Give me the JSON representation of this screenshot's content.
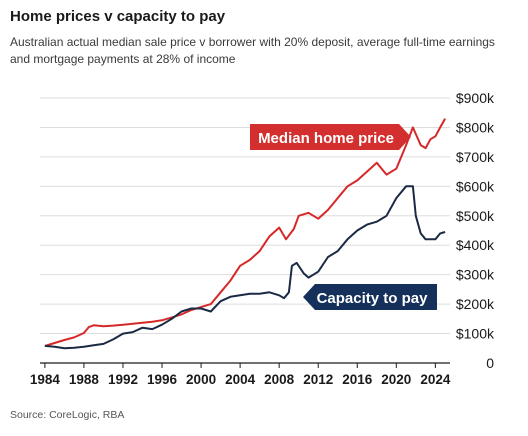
{
  "header": {
    "title": "Home prices v capacity to pay",
    "subtitle": "Australian actual median sale price v borrower with 20% deposit, average full-time earnings and mortgage payments at 28% of income"
  },
  "footer": {
    "source": "Source: CoreLogic, RBA"
  },
  "chart_data": {
    "type": "line",
    "title": "Home prices v capacity to pay",
    "xlabel": "",
    "ylabel": "",
    "xlim": [
      1983.5,
      2025.5
    ],
    "ylim": [
      0,
      900000
    ],
    "x_ticks": [
      1984,
      1988,
      1992,
      1996,
      2000,
      2004,
      2008,
      2012,
      2016,
      2020,
      2024
    ],
    "y_ticks": [
      {
        "value": 0,
        "label": "0"
      },
      {
        "value": 100000,
        "label": "$100k"
      },
      {
        "value": 200000,
        "label": "$200k"
      },
      {
        "value": 300000,
        "label": "$300k"
      },
      {
        "value": 400000,
        "label": "$400k"
      },
      {
        "value": 500000,
        "label": "$500k"
      },
      {
        "value": 600000,
        "label": "$600k"
      },
      {
        "value": 700000,
        "label": "$700k"
      },
      {
        "value": 800000,
        "label": "$800k"
      },
      {
        "value": 900000,
        "label": "$900k"
      }
    ],
    "grid": true,
    "series": [
      {
        "name": "Median home price",
        "color": "#d62828",
        "label_color": "#d32f2f",
        "points": [
          [
            1984.0,
            58000
          ],
          [
            1985.0,
            68000
          ],
          [
            1986.0,
            78000
          ],
          [
            1987.0,
            87000
          ],
          [
            1988.0,
            102000
          ],
          [
            1988.5,
            122000
          ],
          [
            1989.0,
            128000
          ],
          [
            1990.0,
            125000
          ],
          [
            1991.0,
            127000
          ],
          [
            1992.0,
            130000
          ],
          [
            1993.0,
            133000
          ],
          [
            1994.0,
            137000
          ],
          [
            1995.0,
            140000
          ],
          [
            1996.0,
            145000
          ],
          [
            1997.0,
            155000
          ],
          [
            1998.0,
            165000
          ],
          [
            1999.0,
            180000
          ],
          [
            2000.0,
            190000
          ],
          [
            2001.0,
            200000
          ],
          [
            2002.0,
            240000
          ],
          [
            2003.0,
            280000
          ],
          [
            2004.0,
            330000
          ],
          [
            2005.0,
            350000
          ],
          [
            2006.0,
            380000
          ],
          [
            2007.0,
            430000
          ],
          [
            2008.0,
            460000
          ],
          [
            2008.7,
            420000
          ],
          [
            2009.5,
            455000
          ],
          [
            2010.0,
            500000
          ],
          [
            2011.0,
            510000
          ],
          [
            2012.0,
            490000
          ],
          [
            2013.0,
            520000
          ],
          [
            2014.0,
            560000
          ],
          [
            2015.0,
            600000
          ],
          [
            2016.0,
            620000
          ],
          [
            2017.0,
            650000
          ],
          [
            2018.0,
            680000
          ],
          [
            2019.0,
            640000
          ],
          [
            2020.0,
            660000
          ],
          [
            2021.0,
            740000
          ],
          [
            2021.7,
            800000
          ],
          [
            2022.5,
            740000
          ],
          [
            2023.0,
            730000
          ],
          [
            2023.5,
            760000
          ],
          [
            2024.0,
            770000
          ],
          [
            2024.5,
            800000
          ],
          [
            2025.0,
            830000
          ]
        ]
      },
      {
        "name": "Capacity to pay",
        "color": "#1b2a44",
        "label_color": "#15305a",
        "points": [
          [
            1984.0,
            58000
          ],
          [
            1985.0,
            55000
          ],
          [
            1986.0,
            50000
          ],
          [
            1987.0,
            52000
          ],
          [
            1988.0,
            55000
          ],
          [
            1989.0,
            60000
          ],
          [
            1990.0,
            65000
          ],
          [
            1991.0,
            80000
          ],
          [
            1992.0,
            100000
          ],
          [
            1993.0,
            105000
          ],
          [
            1994.0,
            120000
          ],
          [
            1995.0,
            115000
          ],
          [
            1996.0,
            130000
          ],
          [
            1997.0,
            150000
          ],
          [
            1998.0,
            175000
          ],
          [
            1999.0,
            185000
          ],
          [
            2000.0,
            185000
          ],
          [
            2001.0,
            175000
          ],
          [
            2002.0,
            210000
          ],
          [
            2003.0,
            225000
          ],
          [
            2004.0,
            230000
          ],
          [
            2005.0,
            235000
          ],
          [
            2006.0,
            235000
          ],
          [
            2007.0,
            240000
          ],
          [
            2008.0,
            230000
          ],
          [
            2008.5,
            220000
          ],
          [
            2009.0,
            240000
          ],
          [
            2009.3,
            330000
          ],
          [
            2009.8,
            340000
          ],
          [
            2010.5,
            305000
          ],
          [
            2011.0,
            290000
          ],
          [
            2012.0,
            310000
          ],
          [
            2013.0,
            360000
          ],
          [
            2014.0,
            380000
          ],
          [
            2015.0,
            420000
          ],
          [
            2016.0,
            450000
          ],
          [
            2017.0,
            470000
          ],
          [
            2018.0,
            480000
          ],
          [
            2019.0,
            500000
          ],
          [
            2020.0,
            560000
          ],
          [
            2021.0,
            600000
          ],
          [
            2021.7,
            600000
          ],
          [
            2022.0,
            500000
          ],
          [
            2022.5,
            440000
          ],
          [
            2023.0,
            420000
          ],
          [
            2024.0,
            420000
          ],
          [
            2024.5,
            440000
          ],
          [
            2025.0,
            445000
          ]
        ]
      }
    ],
    "annotations": [
      {
        "text": "Median home price",
        "series": 0,
        "position": "upper-right, pointing right"
      },
      {
        "text": "Capacity to pay",
        "series": 1,
        "position": "lower-right, pointing left"
      }
    ]
  },
  "colors": {
    "background": "#ffffff",
    "grid": "#dddddd",
    "axis": "#1a1a1a"
  }
}
